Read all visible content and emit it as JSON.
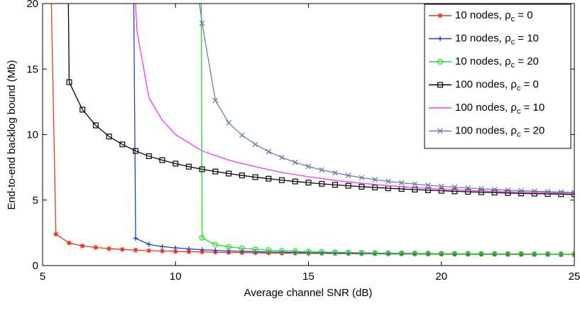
{
  "chart_data": {
    "type": "line",
    "title": "",
    "xlabel": "Average channel SNR (dB)",
    "ylabel": "End-to-end backlog bound (Mb)",
    "xlim": [
      5,
      25
    ],
    "ylim": [
      0,
      20
    ],
    "xticks": [
      "5",
      "10",
      "15",
      "20",
      "25"
    ],
    "yticks": [
      "0",
      "5",
      "10",
      "15",
      "20"
    ],
    "grid": false,
    "legend_position": "top-right",
    "series": [
      {
        "label_main": "10 nodes, ",
        "label_sym": "ρ",
        "label_sub": "c",
        "label_value": " = 0",
        "color": "#e8341c",
        "marker": "star",
        "x": [
          5.33,
          5.5,
          6,
          6.5,
          7,
          7.5,
          8,
          8.5,
          9,
          9.5,
          10,
          10.5,
          11,
          11.5,
          12,
          12.5,
          13,
          13.5,
          14,
          14.5,
          15,
          15.5,
          16,
          16.5,
          17,
          17.5,
          18,
          18.5,
          19,
          19.5,
          20,
          20.5,
          21,
          21.5,
          22,
          22.5,
          23,
          23.5,
          24,
          24.5,
          25
        ],
        "y": [
          20,
          2.4,
          1.72,
          1.5,
          1.38,
          1.29,
          1.23,
          1.18,
          1.14,
          1.11,
          1.08,
          1.06,
          1.04,
          1.02,
          1.0,
          0.99,
          0.98,
          0.96,
          0.95,
          0.94,
          0.93,
          0.92,
          0.92,
          0.91,
          0.9,
          0.9,
          0.89,
          0.89,
          0.88,
          0.88,
          0.87,
          0.87,
          0.87,
          0.86,
          0.86,
          0.86,
          0.85,
          0.85,
          0.85,
          0.85,
          0.84
        ],
        "marker_from": 1
      },
      {
        "label_main": "10 nodes, ",
        "label_sym": "ρ",
        "label_sub": "c",
        "label_value": " = 10",
        "color": "#1f3fd6",
        "marker": "plus",
        "x": [
          8.43,
          8.5,
          9,
          9.5,
          10,
          10.5,
          11,
          11.5,
          12,
          12.5,
          13,
          13.5,
          14,
          14.5,
          15,
          15.5,
          16,
          16.5,
          17,
          17.5,
          18,
          18.5,
          19,
          19.5,
          20,
          20.5,
          21,
          21.5,
          22,
          22.5,
          23,
          23.5,
          24,
          24.5,
          25
        ],
        "y": [
          20,
          2.08,
          1.62,
          1.45,
          1.35,
          1.27,
          1.21,
          1.16,
          1.12,
          1.09,
          1.06,
          1.04,
          1.02,
          1.0,
          0.98,
          0.97,
          0.95,
          0.94,
          0.93,
          0.92,
          0.91,
          0.91,
          0.9,
          0.89,
          0.89,
          0.88,
          0.88,
          0.87,
          0.87,
          0.87,
          0.86,
          0.86,
          0.86,
          0.85,
          0.85
        ],
        "marker_from": 1
      },
      {
        "label_main": "10 nodes, ",
        "label_sym": "ρ",
        "label_sub": "c",
        "label_value": " = 20",
        "color": "#22dd22",
        "marker": "circle",
        "x": [
          10.97,
          11,
          11.5,
          12,
          12.5,
          13,
          13.5,
          14,
          14.5,
          15,
          15.5,
          16,
          16.5,
          17,
          17.5,
          18,
          18.5,
          19,
          19.5,
          20,
          20.5,
          21,
          21.5,
          22,
          22.5,
          23,
          23.5,
          24,
          24.5,
          25
        ],
        "y": [
          20,
          2.12,
          1.6,
          1.42,
          1.32,
          1.24,
          1.18,
          1.13,
          1.09,
          1.06,
          1.04,
          1.02,
          1.0,
          0.98,
          0.96,
          0.95,
          0.94,
          0.93,
          0.92,
          0.91,
          0.9,
          0.9,
          0.89,
          0.89,
          0.88,
          0.88,
          0.87,
          0.87,
          0.86,
          0.86
        ],
        "marker_from": 1
      },
      {
        "label_main": "100 nodes, ",
        "label_sym": "ρ",
        "label_sub": "c",
        "label_value": " = 0",
        "color": "#000000",
        "marker": "square",
        "x": [
          5.97,
          6,
          6.5,
          7,
          7.5,
          8,
          8.5,
          9,
          9.5,
          10,
          10.5,
          11,
          11.5,
          12,
          12.5,
          13,
          13.5,
          14,
          14.5,
          15,
          15.5,
          16,
          16.5,
          17,
          17.5,
          18,
          18.5,
          19,
          19.5,
          20,
          20.5,
          21,
          21.5,
          22,
          22.5,
          23,
          23.5,
          24,
          24.5,
          25
        ],
        "y": [
          20,
          14.0,
          11.9,
          10.7,
          9.85,
          9.25,
          8.75,
          8.35,
          8.05,
          7.78,
          7.55,
          7.35,
          7.18,
          7.02,
          6.88,
          6.75,
          6.63,
          6.52,
          6.42,
          6.33,
          6.24,
          6.16,
          6.09,
          6.02,
          5.96,
          5.9,
          5.85,
          5.8,
          5.75,
          5.71,
          5.67,
          5.63,
          5.6,
          5.57,
          5.54,
          5.51,
          5.49,
          5.47,
          5.45,
          5.43
        ],
        "marker_from": 1
      },
      {
        "label_main": "100 nodes, ",
        "label_sym": "ρ",
        "label_sub": "c",
        "label_value": " = 10",
        "color": "#ff33ff",
        "marker": "none",
        "x": [
          8.5,
          8.55,
          9,
          9.5,
          10,
          11,
          12,
          13,
          14,
          15,
          16,
          17,
          18,
          19,
          20,
          21,
          22,
          23,
          24,
          25
        ],
        "y": [
          20,
          17.9,
          12.8,
          11.1,
          10.0,
          8.75,
          8.05,
          7.55,
          7.1,
          6.78,
          6.5,
          6.28,
          6.1,
          5.95,
          5.83,
          5.73,
          5.66,
          5.6,
          5.56,
          5.53
        ],
        "marker_from": 99
      },
      {
        "label_main": "100 nodes, ",
        "label_sym": "ρ",
        "label_sub": "c",
        "label_value": " = 20",
        "color": "#6a7fa8",
        "marker": "x",
        "x": [
          10.9,
          11,
          11.5,
          12,
          12.5,
          13,
          13.5,
          14,
          14.5,
          15,
          15.5,
          16,
          16.5,
          17,
          17.5,
          18,
          18.5,
          19,
          19.5,
          20,
          20.5,
          21,
          21.5,
          22,
          22.5,
          23,
          23.5,
          24,
          24.5,
          25
        ],
        "y": [
          20,
          18.5,
          12.6,
          10.9,
          9.95,
          9.25,
          8.7,
          8.25,
          7.88,
          7.57,
          7.3,
          7.08,
          6.88,
          6.71,
          6.56,
          6.43,
          6.32,
          6.22,
          6.13,
          6.05,
          5.98,
          5.92,
          5.86,
          5.81,
          5.76,
          5.72,
          5.68,
          5.64,
          5.61,
          5.58
        ],
        "marker_from": 1
      }
    ]
  }
}
